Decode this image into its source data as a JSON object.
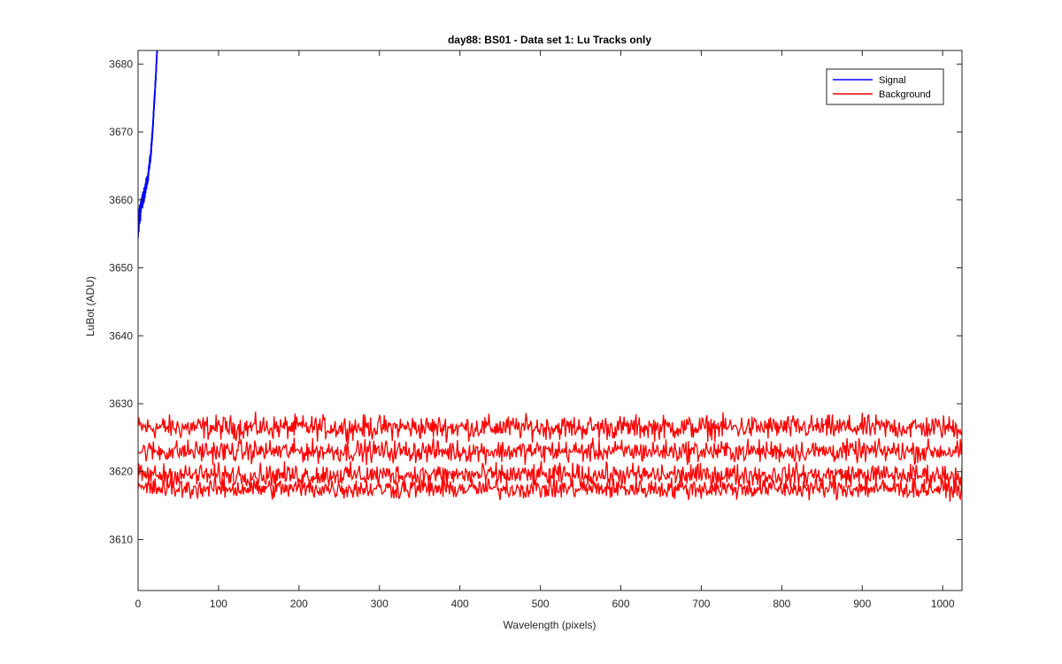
{
  "chart_data": {
    "type": "line",
    "title": "day88: BS01 - Data set 1: Lu Tracks only",
    "xlabel": "Wavelength (pixels)",
    "ylabel": "LuBot (ADU)",
    "xlim": [
      0,
      1024
    ],
    "ylim": [
      3602.5,
      3682
    ],
    "xticks": [
      0,
      100,
      200,
      300,
      400,
      500,
      600,
      700,
      800,
      900,
      1000
    ],
    "yticks": [
      3610,
      3620,
      3630,
      3640,
      3650,
      3660,
      3670,
      3680
    ],
    "grid": false,
    "legend_position": "top-right",
    "series": [
      {
        "name": "Signal",
        "color": "#0000ff",
        "noise_amplitude": 2.5,
        "description_points": [
          [
            0,
            3656
          ],
          [
            2,
            3658
          ],
          [
            4,
            3659
          ],
          [
            6,
            3660
          ],
          [
            8,
            3661
          ],
          [
            10,
            3662
          ],
          [
            12,
            3663
          ],
          [
            14,
            3665
          ],
          [
            16,
            3667
          ],
          [
            18,
            3670
          ],
          [
            20,
            3674
          ],
          [
            22,
            3678
          ],
          [
            24,
            3683
          ]
        ]
      },
      {
        "name": "Background",
        "color": "#ff0000",
        "bands": [
          {
            "center": 3626.5,
            "noise_amplitude": 2.6
          },
          {
            "center": 3623.0,
            "noise_amplitude": 2.4
          },
          {
            "center": 3619.5,
            "noise_amplitude": 2.4
          },
          {
            "center": 3617.5,
            "noise_amplitude": 2.2
          }
        ],
        "x_range": [
          0,
          1024
        ]
      }
    ]
  }
}
